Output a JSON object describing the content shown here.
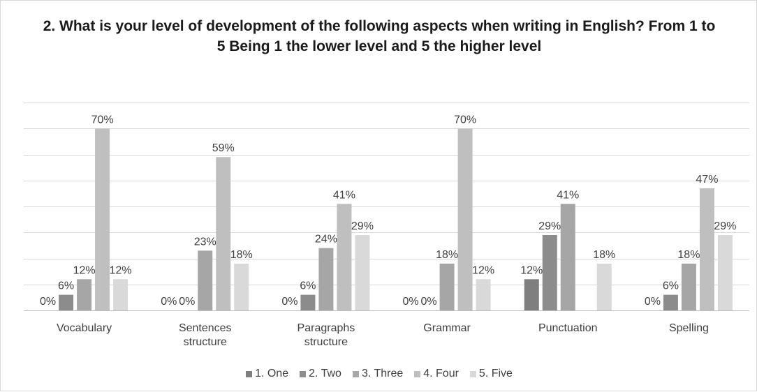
{
  "chart_data": {
    "type": "bar",
    "title": "2. What is your level of development of the following aspects when writing in English? From 1 to 5 Being 1 the lower level and 5 the higher level",
    "categories": [
      "Vocabulary",
      "Sentences structure",
      "Paragraphs structure",
      "Grammar",
      "Punctuation",
      "Spelling"
    ],
    "series": [
      {
        "name": "1. One",
        "color": "#7f7f7f",
        "values": [
          0,
          0,
          0,
          0,
          12,
          0
        ],
        "labels": [
          "0%",
          "0%",
          "0%",
          "0%",
          "12%",
          "0%"
        ]
      },
      {
        "name": "2. Two",
        "color": "#8c8c8c",
        "values": [
          6,
          0,
          6,
          0,
          29,
          6
        ],
        "labels": [
          "6%",
          "0%",
          "6%",
          "0%",
          "29%",
          "6%"
        ]
      },
      {
        "name": "3. Three",
        "color": "#a6a6a6",
        "values": [
          12,
          23,
          24,
          18,
          41,
          18
        ],
        "labels": [
          "12%",
          "23%",
          "24%",
          "18%",
          "41%",
          "18%"
        ]
      },
      {
        "name": "4. Four",
        "color": "#bfbfbf",
        "values": [
          70,
          59,
          41,
          70,
          0,
          47
        ],
        "labels": [
          "70%",
          "59%",
          "41%",
          "70%",
          "",
          "47%"
        ]
      },
      {
        "name": "5. Five",
        "color": "#d9d9d9",
        "values": [
          12,
          18,
          29,
          12,
          18,
          29
        ],
        "labels": [
          "12%",
          "18%",
          "29%",
          "12%",
          "18%",
          "29%"
        ]
      }
    ],
    "ylim": [
      0,
      80
    ],
    "grid": true,
    "legend_position": "bottom"
  }
}
